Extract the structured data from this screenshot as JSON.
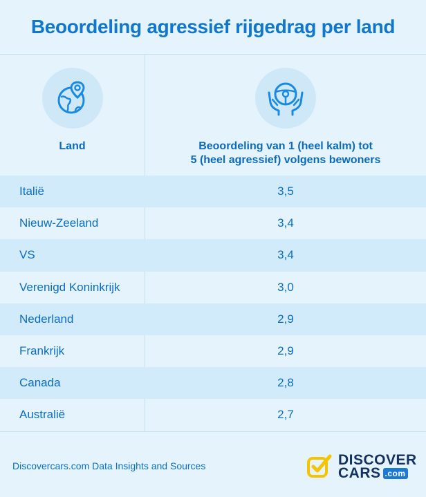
{
  "title": "Beoordeling agressief rijgedrag per land",
  "columns": {
    "country_label": "Land",
    "score_label_line1": "Beoordeling van 1 (heel kalm) tot",
    "score_label_line2": "5 (heel agressief) volgens bewoners",
    "country_icon": "globe-location-pin-icon",
    "score_icon": "steering-wheel-hands-icon"
  },
  "rows": [
    {
      "country": "Italië",
      "score": "3,5"
    },
    {
      "country": "Nieuw-Zeeland",
      "score": "3,4"
    },
    {
      "country": "VS",
      "score": "3,4"
    },
    {
      "country": "Verenigd Koninkrijk",
      "score": "3,0"
    },
    {
      "country": "Nederland",
      "score": "2,9"
    },
    {
      "country": "Frankrijk",
      "score": "2,9"
    },
    {
      "country": "Canada",
      "score": "2,8"
    },
    {
      "country": "Australië",
      "score": "2,7"
    }
  ],
  "footer": {
    "source": "Discovercars.com Data Insights and Sources",
    "logo_top": "DISCOVER",
    "logo_bottom": "CARS",
    "logo_suffix": ".com"
  },
  "colors": {
    "background": "#e4f3fc",
    "row_shade": "#d2ebfa",
    "accent": "#1177cc",
    "logo_check": "#f5c400",
    "logo_text": "#14315f"
  }
}
